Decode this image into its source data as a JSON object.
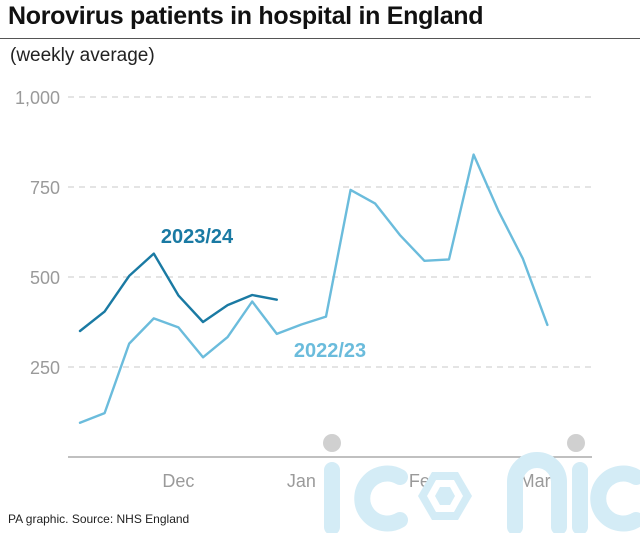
{
  "title": "Norovirus patients in hospital in England",
  "subtitle": "(weekly average)",
  "source": "PA graphic. Source: NHS England",
  "watermark": "iconic",
  "chart_data": {
    "type": "line",
    "title": "Norovirus patients in hospital in England",
    "subtitle": "(weekly average)",
    "xlabel": "",
    "ylabel": "",
    "ylim": [
      0,
      1000
    ],
    "yticks": [
      250,
      500,
      750,
      1000
    ],
    "ytick_labels": [
      "250",
      "500",
      "750",
      "1,000"
    ],
    "month_ticks": [
      {
        "label": "Dec",
        "week": 4
      },
      {
        "label": "Jan",
        "week": 9
      },
      {
        "label": "Feb",
        "week": 14
      },
      {
        "label": "Mar",
        "week": 18.5
      }
    ],
    "grid": true,
    "series": [
      {
        "name": "2022/23",
        "color": "#6bbcdc",
        "values": [
          95,
          122,
          315,
          385,
          360,
          277,
          333,
          432,
          342,
          368,
          390,
          742,
          704,
          617,
          545,
          549,
          840,
          685,
          551,
          367
        ]
      },
      {
        "name": "2023/24",
        "color": "#1a7aa3",
        "values": [
          350,
          404,
          503,
          565,
          449,
          375,
          422,
          450,
          437
        ]
      }
    ]
  }
}
